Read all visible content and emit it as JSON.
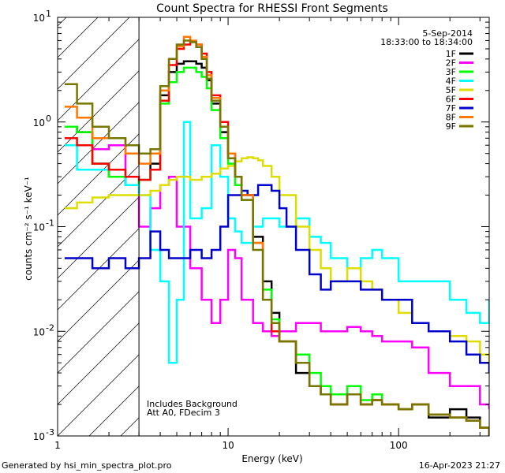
{
  "chart_data": {
    "type": "line",
    "title": "Count Spectra for RHESSI Front Segments",
    "xlabel": "Energy (keV)",
    "ylabel": "counts cm⁻² s⁻¹ keV⁻¹",
    "xscale": "log",
    "yscale": "log",
    "xlim": [
      1,
      340
    ],
    "ylim": [
      0.001,
      10
    ],
    "x_ticks": [
      {
        "v": 1,
        "label": "1"
      },
      {
        "v": 10,
        "label": "10"
      },
      {
        "v": 100,
        "label": "100"
      }
    ],
    "y_ticks": [
      {
        "v": 0.001,
        "base": "10",
        "exp": "-3"
      },
      {
        "v": 0.01,
        "base": "10",
        "exp": "-2"
      },
      {
        "v": 0.1,
        "base": "10",
        "exp": "-1"
      },
      {
        "v": 1,
        "base": "10",
        "exp": "0"
      },
      {
        "v": 10,
        "base": "10",
        "exp": "1"
      }
    ],
    "shaded_region_keV": [
      1,
      3
    ],
    "date": "5-Sep-2014",
    "time_range": "18:33:00 to 18:34:00",
    "annotations": [
      "Includes Background",
      "Att A0, FDecim 3"
    ],
    "series": [
      {
        "name": "1F",
        "color": "#000000",
        "x": [
          1.1,
          1.3,
          1.6,
          2.0,
          2.5,
          3.0,
          3.5,
          4.0,
          4.5,
          5.0,
          5.5,
          6.0,
          6.5,
          7.0,
          7.5,
          8,
          9,
          10,
          11,
          12,
          14,
          16,
          18,
          20,
          25,
          30,
          35,
          40,
          50,
          60,
          70,
          80,
          100,
          120,
          150,
          200,
          250,
          300,
          340
        ],
        "y": [
          0.9,
          0.8,
          0.4,
          0.3,
          0.25,
          0.28,
          0.4,
          1.8,
          3.0,
          3.6,
          3.8,
          3.8,
          3.6,
          3.3,
          2.5,
          1.5,
          0.8,
          0.45,
          0.3,
          0.2,
          0.08,
          0.03,
          0.015,
          0.008,
          0.004,
          0.003,
          0.0025,
          0.002,
          0.0025,
          0.002,
          0.0022,
          0.002,
          0.0018,
          0.002,
          0.0015,
          0.0018,
          0.0015,
          0.0012,
          0.001
        ]
      },
      {
        "name": "2F",
        "color": "#ff00ff",
        "x": [
          1.1,
          1.3,
          1.6,
          2.0,
          2.5,
          3.0,
          3.5,
          4.0,
          4.5,
          5,
          6,
          7,
          8,
          9,
          10,
          11,
          12,
          14,
          16,
          18,
          20,
          25,
          30,
          35,
          40,
          50,
          60,
          70,
          80,
          100,
          120,
          150,
          200,
          250,
          300,
          340
        ],
        "y": [
          0.6,
          0.6,
          0.55,
          0.6,
          0.25,
          0.1,
          0.15,
          0.25,
          0.3,
          0.1,
          0.04,
          0.02,
          0.012,
          0.02,
          0.06,
          0.05,
          0.02,
          0.012,
          0.01,
          0.009,
          0.01,
          0.012,
          0.012,
          0.01,
          0.01,
          0.011,
          0.01,
          0.009,
          0.008,
          0.008,
          0.007,
          0.004,
          0.003,
          0.003,
          0.002,
          0.0018
        ]
      },
      {
        "name": "3F",
        "color": "#00ff00",
        "x": [
          1.1,
          1.3,
          1.6,
          2.0,
          2.5,
          3.0,
          3.5,
          4.0,
          4.5,
          5.0,
          5.5,
          6.0,
          6.5,
          7.0,
          7.5,
          8,
          9,
          10,
          11,
          12,
          14,
          16,
          18,
          20,
          25,
          30,
          35,
          40,
          50,
          60,
          70,
          80,
          100,
          120,
          150,
          200,
          250,
          300,
          340
        ],
        "y": [
          0.9,
          0.8,
          0.4,
          0.3,
          0.25,
          0.28,
          0.35,
          1.5,
          2.4,
          3.0,
          3.3,
          3.3,
          3.0,
          2.7,
          2.1,
          1.3,
          0.7,
          0.4,
          0.25,
          0.18,
          0.07,
          0.025,
          0.013,
          0.008,
          0.006,
          0.004,
          0.003,
          0.0025,
          0.003,
          0.0022,
          0.0025,
          0.002,
          0.0018,
          0.002,
          0.0016,
          0.0015,
          0.0014,
          0.0012,
          0.001
        ]
      },
      {
        "name": "4F",
        "color": "#00ffff",
        "x": [
          1.1,
          1.3,
          1.6,
          2.0,
          2.5,
          3.0,
          3.5,
          4.0,
          4.5,
          5.0,
          5.5,
          6.0,
          7,
          8,
          9,
          10,
          11,
          12,
          14,
          16,
          18,
          20,
          25,
          30,
          35,
          40,
          50,
          60,
          70,
          80,
          100,
          120,
          150,
          200,
          250,
          300,
          340
        ],
        "y": [
          0.6,
          0.35,
          0.35,
          0.35,
          0.25,
          0.2,
          0.06,
          0.03,
          0.005,
          0.02,
          1.0,
          0.12,
          0.15,
          0.6,
          0.3,
          0.12,
          0.09,
          0.07,
          0.1,
          0.12,
          0.12,
          0.1,
          0.12,
          0.08,
          0.07,
          0.05,
          0.04,
          0.05,
          0.06,
          0.05,
          0.03,
          0.03,
          0.03,
          0.02,
          0.015,
          0.012,
          0.02
        ]
      },
      {
        "name": "5F",
        "color": "#dddd00",
        "x": [
          1.1,
          1.3,
          1.6,
          2.0,
          2.5,
          3.0,
          3.5,
          4.0,
          4.5,
          5,
          6,
          7,
          8,
          9,
          10,
          11,
          12,
          13,
          14,
          15,
          16,
          18,
          20,
          25,
          30,
          35,
          40,
          50,
          60,
          70,
          80,
          100,
          120,
          150,
          200,
          250,
          300,
          340
        ],
        "y": [
          0.15,
          0.17,
          0.19,
          0.2,
          0.2,
          0.2,
          0.22,
          0.25,
          0.28,
          0.3,
          0.28,
          0.3,
          0.32,
          0.36,
          0.38,
          0.42,
          0.45,
          0.46,
          0.45,
          0.43,
          0.38,
          0.3,
          0.2,
          0.1,
          0.06,
          0.04,
          0.03,
          0.04,
          0.03,
          0.025,
          0.02,
          0.015,
          0.012,
          0.01,
          0.009,
          0.008,
          0.006,
          0.005
        ]
      },
      {
        "name": "6F",
        "color": "#ff0000",
        "x": [
          1.1,
          1.3,
          1.6,
          2.0,
          2.5,
          3.0,
          3.5,
          4.0,
          4.5,
          5.0,
          5.5,
          6.0,
          6.5,
          7.0,
          7.5,
          8,
          9,
          10,
          11,
          12,
          14,
          16,
          18,
          20,
          25,
          30,
          35,
          40,
          50,
          60,
          70,
          80,
          100,
          120,
          150,
          200,
          250,
          300,
          340
        ],
        "y": [
          0.7,
          0.6,
          0.4,
          0.35,
          0.3,
          0.28,
          0.35,
          1.6,
          3.5,
          5.0,
          5.5,
          5.8,
          5.5,
          4.5,
          3.0,
          1.8,
          1.0,
          0.5,
          0.3,
          0.2,
          0.07,
          0.02,
          0.01,
          0.008,
          0.005,
          0.003,
          0.0025,
          0.002,
          0.0025,
          0.002,
          0.0022,
          0.002,
          0.0018,
          0.002,
          0.0016,
          0.0015,
          0.0014,
          0.0012,
          0.001
        ]
      },
      {
        "name": "7F",
        "color": "#0000cc",
        "x": [
          1.1,
          1.3,
          1.6,
          2.0,
          2.5,
          3.0,
          3.5,
          4.0,
          4.5,
          5,
          6,
          7,
          8,
          9,
          10,
          11,
          12,
          13,
          14,
          15,
          16,
          18,
          20,
          22,
          25,
          30,
          35,
          40,
          50,
          60,
          70,
          80,
          100,
          120,
          150,
          200,
          250,
          300,
          340
        ],
        "y": [
          0.05,
          0.05,
          0.04,
          0.05,
          0.04,
          0.05,
          0.09,
          0.06,
          0.05,
          0.05,
          0.06,
          0.05,
          0.06,
          0.1,
          0.2,
          0.2,
          0.22,
          0.2,
          0.2,
          0.25,
          0.25,
          0.22,
          0.15,
          0.1,
          0.06,
          0.035,
          0.025,
          0.03,
          0.03,
          0.025,
          0.025,
          0.02,
          0.02,
          0.012,
          0.01,
          0.008,
          0.006,
          0.005,
          0.004
        ]
      },
      {
        "name": "8F",
        "color": "#ff7700",
        "x": [
          1.1,
          1.3,
          1.6,
          2.0,
          2.5,
          3.0,
          3.5,
          4.0,
          4.5,
          5.0,
          5.5,
          6.0,
          6.5,
          7.0,
          7.5,
          8,
          9,
          10,
          11,
          12,
          14,
          16,
          18,
          20,
          25,
          30,
          35,
          40,
          50,
          60,
          70,
          80,
          100,
          120,
          150,
          200,
          250,
          300,
          340
        ],
        "y": [
          1.4,
          1.1,
          0.7,
          0.7,
          0.5,
          0.4,
          0.5,
          2.0,
          4.0,
          5.3,
          6.5,
          6.0,
          5.5,
          4.2,
          2.8,
          1.7,
          0.9,
          0.5,
          0.3,
          0.2,
          0.07,
          0.02,
          0.012,
          0.008,
          0.005,
          0.003,
          0.0025,
          0.002,
          0.0025,
          0.002,
          0.0022,
          0.002,
          0.0018,
          0.002,
          0.0016,
          0.0015,
          0.0014,
          0.0012,
          0.001
        ]
      },
      {
        "name": "9F",
        "color": "#777700",
        "x": [
          1.1,
          1.3,
          1.6,
          2.0,
          2.5,
          3.0,
          3.5,
          4.0,
          4.5,
          5.0,
          5.5,
          6.0,
          6.5,
          7.0,
          7.5,
          8,
          9,
          10,
          11,
          12,
          14,
          16,
          18,
          20,
          25,
          30,
          35,
          40,
          50,
          60,
          70,
          80,
          100,
          120,
          150,
          200,
          250,
          300,
          340
        ],
        "y": [
          2.3,
          1.5,
          0.9,
          0.7,
          0.6,
          0.5,
          0.55,
          2.2,
          4.0,
          5.5,
          6.0,
          5.8,
          5.2,
          4.0,
          2.6,
          1.6,
          0.9,
          0.45,
          0.3,
          0.18,
          0.06,
          0.02,
          0.012,
          0.008,
          0.005,
          0.003,
          0.0025,
          0.002,
          0.0025,
          0.002,
          0.0022,
          0.002,
          0.0018,
          0.002,
          0.0016,
          0.0015,
          0.0014,
          0.0012,
          0.001
        ]
      }
    ]
  },
  "footer": {
    "left": "Generated by hsi_min_spectra_plot.pro",
    "right": "16-Apr-2023 21:27"
  }
}
